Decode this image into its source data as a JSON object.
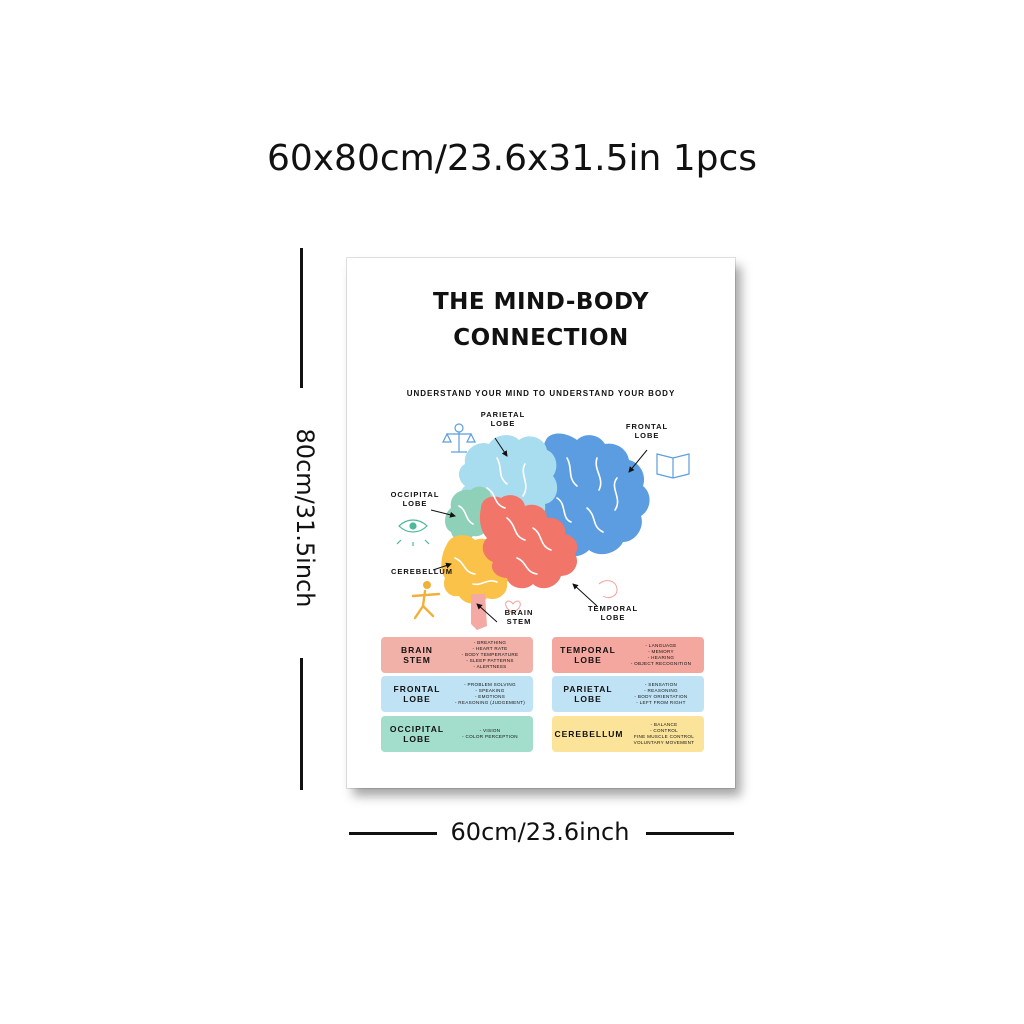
{
  "headline": "60x80cm/23.6x31.5in 1pcs",
  "dim_height": "80cm/31.5inch",
  "dim_width": "60cm/23.6inch",
  "poster": {
    "title_line1": "THE MIND-BODY",
    "title_line2": "CONNECTION",
    "subtitle": "UNDERSTAND YOUR MIND TO UNDERSTAND YOUR BODY",
    "labels": {
      "parietal_1": "PARIETAL",
      "parietal_2": "LOBE",
      "frontal_1": "FRONTAL",
      "frontal_2": "LOBE",
      "occipital_1": "OCCIPITAL",
      "occipital_2": "LOBE",
      "cerebellum": "CEREBELLUM",
      "brainstem_1": "BRAIN",
      "brainstem_2": "STEM",
      "temporal_1": "TEMPORAL",
      "temporal_2": "LOBE"
    },
    "colors": {
      "frontal": "#5b9de0",
      "parietal": "#a8dcef",
      "occipital": "#8ed1b8",
      "temporal": "#f2756a",
      "cerebellum": "#fbc24a",
      "brainstem": "#f4a9a4"
    },
    "cards": {
      "brain_stem": {
        "title_1": "BRAIN",
        "title_2": "STEM",
        "color": "#f1b1a8",
        "items": [
          "- BREATHING",
          "- HEART RATE",
          "- BODY TEMPERATURE",
          "- SLEEP PATTERNS",
          "- ALERTNESS"
        ]
      },
      "temporal_lobe": {
        "title_1": "TEMPORAL",
        "title_2": "LOBE",
        "color": "#f3a79f",
        "items": [
          "- LANGUAGE",
          "- MEMORY",
          "- HEARING",
          "- OBJECT RECOGNITION"
        ]
      },
      "frontal_lobe": {
        "title_1": "FRONTAL",
        "title_2": "LOBE",
        "color": "#bfe3f5",
        "items": [
          "- PROBLEM SOLVING",
          "- SPEAKING",
          "- EMOTIONS",
          "- REASONING (JUDGEMENT)"
        ]
      },
      "parietal_lobe": {
        "title_1": "PARIETAL",
        "title_2": "LOBE",
        "color": "#bfe3f5",
        "items": [
          "- SENSATION",
          "- REASONING",
          "- BODY ORIENTATION",
          "- LEFT FROM RIGHT"
        ]
      },
      "occipital_lobe": {
        "title_1": "OCCIPITAL",
        "title_2": "LOBE",
        "color": "#a3ddcb",
        "items": [
          "- VISION",
          "- COLOR PERCEPTION"
        ]
      },
      "cerebellum": {
        "title_1": "CEREBELLUM",
        "title_2": "",
        "color": "#fbe49a",
        "items": [
          "- BALANCE",
          "- CONTROL",
          "FINE MUSCLE CONTROL",
          "VOLUNTARY MOVEMENT"
        ]
      }
    },
    "icons": [
      "brain-scale-icon",
      "book-icon",
      "eye-icon",
      "running-figure-icon",
      "heart-icon"
    ]
  }
}
